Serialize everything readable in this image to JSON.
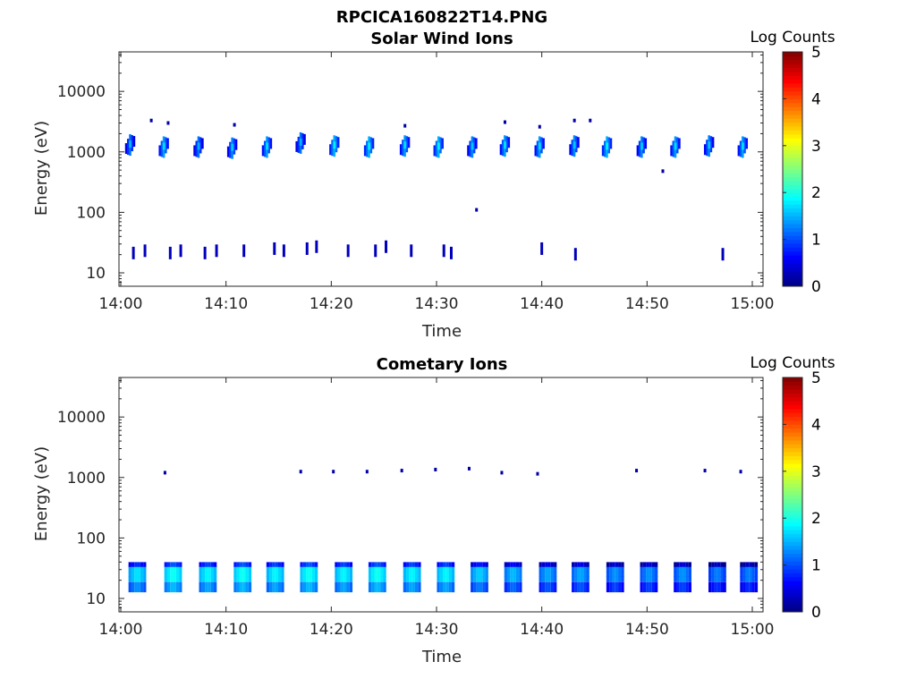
{
  "figure_title": "RPCICA160822T14.PNG",
  "colors": {
    "colormap": [
      "#00007f",
      "#0000ff",
      "#0080ff",
      "#00ffff",
      "#80ff80",
      "#ffff00",
      "#ff8000",
      "#ff0000",
      "#7f0000"
    ],
    "axes": "#262626"
  },
  "chart_data": [
    {
      "type": "heatmap",
      "title": "Solar Wind Ions",
      "xlabel": "Time",
      "ylabel": "Energy (eV)",
      "xticks": [
        "14:00",
        "14:10",
        "14:20",
        "14:30",
        "14:40",
        "14:50",
        "15:00"
      ],
      "yticks": [
        "10",
        "100",
        "1000",
        "10000"
      ],
      "yscale": "log",
      "xlim": [
        "14:00",
        "15:00"
      ],
      "ylim": [
        6,
        45000
      ],
      "colorbar": {
        "label": "Log Counts",
        "ticks": [
          "0",
          "1",
          "2",
          "3",
          "4",
          "5"
        ],
        "range": [
          0,
          5
        ]
      },
      "blobs": [
        {
          "t": 0.9,
          "e": 1300,
          "v": 1.2
        },
        {
          "t": 4.1,
          "e": 1200,
          "v": 1.4
        },
        {
          "t": 7.4,
          "e": 1200,
          "v": 1.2
        },
        {
          "t": 10.6,
          "e": 1150,
          "v": 1.3
        },
        {
          "t": 13.9,
          "e": 1200,
          "v": 1.4
        },
        {
          "t": 17.1,
          "e": 1400,
          "v": 1.2
        },
        {
          "t": 20.3,
          "e": 1250,
          "v": 1.5
        },
        {
          "t": 23.6,
          "e": 1200,
          "v": 1.5
        },
        {
          "t": 27.0,
          "e": 1250,
          "v": 1.4
        },
        {
          "t": 30.2,
          "e": 1200,
          "v": 1.5
        },
        {
          "t": 33.4,
          "e": 1200,
          "v": 1.3
        },
        {
          "t": 36.5,
          "e": 1250,
          "v": 1.4
        },
        {
          "t": 39.8,
          "e": 1200,
          "v": 1.4
        },
        {
          "t": 43.1,
          "e": 1250,
          "v": 1.3
        },
        {
          "t": 46.2,
          "e": 1200,
          "v": 1.5
        },
        {
          "t": 49.5,
          "e": 1200,
          "v": 1.3
        },
        {
          "t": 52.7,
          "e": 1200,
          "v": 1.4
        },
        {
          "t": 55.9,
          "e": 1250,
          "v": 1.3
        },
        {
          "t": 59.1,
          "e": 1200,
          "v": 1.4
        }
      ],
      "bursts": [
        {
          "t": 1.2,
          "e": 22,
          "v": 0.3
        },
        {
          "t": 2.3,
          "e": 24,
          "v": 0.3
        },
        {
          "t": 4.7,
          "e": 22,
          "v": 0.3
        },
        {
          "t": 5.7,
          "e": 24,
          "v": 0.3
        },
        {
          "t": 8.0,
          "e": 22,
          "v": 0.3
        },
        {
          "t": 9.1,
          "e": 24,
          "v": 0.3
        },
        {
          "t": 11.7,
          "e": 24,
          "v": 0.3
        },
        {
          "t": 14.6,
          "e": 26,
          "v": 0.3
        },
        {
          "t": 15.5,
          "e": 24,
          "v": 0.3
        },
        {
          "t": 17.7,
          "e": 26,
          "v": 0.3
        },
        {
          "t": 18.6,
          "e": 28,
          "v": 0.3
        },
        {
          "t": 21.6,
          "e": 24,
          "v": 0.3
        },
        {
          "t": 24.2,
          "e": 24,
          "v": 0.3
        },
        {
          "t": 25.2,
          "e": 28,
          "v": 0.3
        },
        {
          "t": 27.6,
          "e": 24,
          "v": 0.3
        },
        {
          "t": 30.7,
          "e": 24,
          "v": 0.3
        },
        {
          "t": 31.4,
          "e": 22,
          "v": 0.3
        },
        {
          "t": 40.0,
          "e": 26,
          "v": 0.3
        },
        {
          "t": 43.2,
          "e": 21,
          "v": 0.3
        },
        {
          "t": 57.2,
          "e": 21,
          "v": 0.3
        }
      ],
      "dots": [
        {
          "t": 2.9,
          "e": 3300
        },
        {
          "t": 4.5,
          "e": 3000
        },
        {
          "t": 10.8,
          "e": 2800
        },
        {
          "t": 27.0,
          "e": 2700
        },
        {
          "t": 36.5,
          "e": 3100
        },
        {
          "t": 39.8,
          "e": 2600
        },
        {
          "t": 43.1,
          "e": 3300
        },
        {
          "t": 44.6,
          "e": 3300
        },
        {
          "t": 51.5,
          "e": 480
        },
        {
          "t": 33.8,
          "e": 110
        }
      ]
    },
    {
      "type": "heatmap",
      "title": "Cometary Ions",
      "xlabel": "Time",
      "ylabel": "Energy (eV)",
      "xticks": [
        "14:00",
        "14:10",
        "14:20",
        "14:30",
        "14:40",
        "14:50",
        "15:00"
      ],
      "yticks": [
        "10",
        "100",
        "1000",
        "10000"
      ],
      "yscale": "log",
      "xlim": [
        "14:00",
        "15:00"
      ],
      "ylim": [
        6,
        45000
      ],
      "colorbar": {
        "label": "Log Counts",
        "ticks": [
          "0",
          "1",
          "2",
          "3",
          "4",
          "5"
        ],
        "range": [
          0,
          5
        ]
      },
      "columns": [
        {
          "t": 1.5,
          "v": 1.4
        },
        {
          "t": 4.9,
          "v": 1.6
        },
        {
          "t": 8.2,
          "v": 1.5
        },
        {
          "t": 11.5,
          "v": 1.6
        },
        {
          "t": 14.6,
          "v": 1.5
        },
        {
          "t": 17.8,
          "v": 1.6
        },
        {
          "t": 21.1,
          "v": 1.5
        },
        {
          "t": 24.3,
          "v": 1.6
        },
        {
          "t": 27.6,
          "v": 1.5
        },
        {
          "t": 30.8,
          "v": 1.5
        },
        {
          "t": 34.0,
          "v": 1.3
        },
        {
          "t": 37.2,
          "v": 1.2
        },
        {
          "t": 40.5,
          "v": 1.1
        },
        {
          "t": 43.6,
          "v": 1.1
        },
        {
          "t": 46.9,
          "v": 1.0
        },
        {
          "t": 50.1,
          "v": 1.0
        },
        {
          "t": 53.3,
          "v": 1.0
        },
        {
          "t": 56.6,
          "v": 0.9
        },
        {
          "t": 59.6,
          "v": 0.9
        }
      ],
      "dots": [
        {
          "t": 4.2,
          "e": 1200
        },
        {
          "t": 17.1,
          "e": 1250
        },
        {
          "t": 20.2,
          "e": 1250
        },
        {
          "t": 23.4,
          "e": 1250
        },
        {
          "t": 26.7,
          "e": 1300
        },
        {
          "t": 29.9,
          "e": 1350
        },
        {
          "t": 33.1,
          "e": 1400
        },
        {
          "t": 36.2,
          "e": 1200
        },
        {
          "t": 39.6,
          "e": 1150
        },
        {
          "t": 49.0,
          "e": 1300
        },
        {
          "t": 55.5,
          "e": 1300
        },
        {
          "t": 58.9,
          "e": 1250
        }
      ]
    }
  ]
}
